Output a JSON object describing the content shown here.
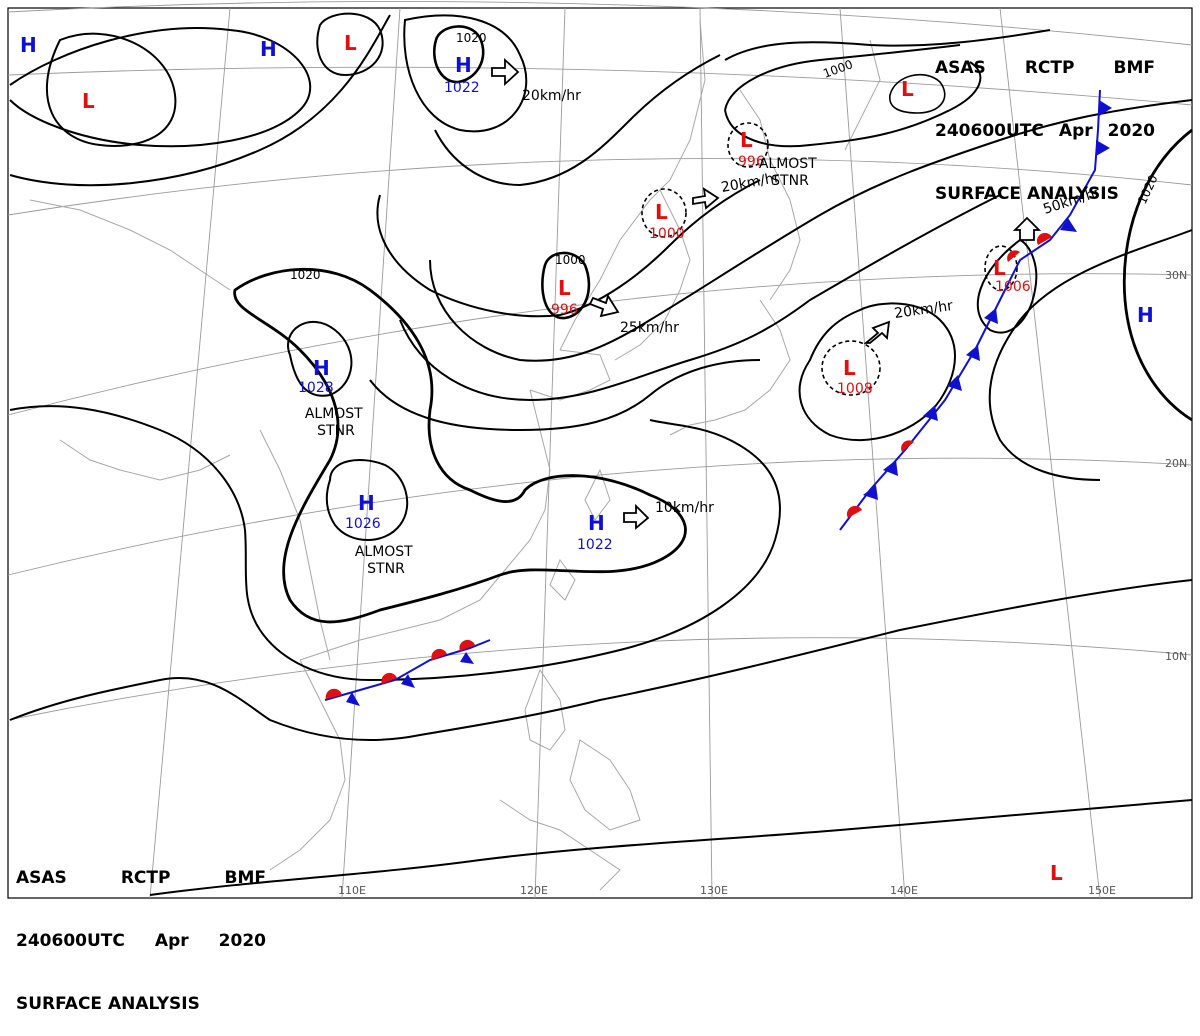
{
  "header": {
    "agency": "ASAS",
    "station": "RCTP",
    "office": "BMF",
    "datetime": "240600UTC",
    "month": "Apr",
    "year": "2020",
    "product": "SURFACE ANALYSIS"
  },
  "isobar_labels": [
    "1020",
    "1000",
    "1000",
    "1020",
    "1020"
  ],
  "centers": [
    {
      "id": "h-nw",
      "type": "H",
      "value": ""
    },
    {
      "id": "h-n1",
      "type": "H",
      "value": ""
    },
    {
      "id": "l-n1",
      "type": "L",
      "value": ""
    },
    {
      "id": "l-nw",
      "type": "L",
      "value": ""
    },
    {
      "id": "h-1022-north",
      "type": "H",
      "value": "1022"
    },
    {
      "id": "l-996-china",
      "type": "L",
      "value": "996"
    },
    {
      "id": "l-1000-korea",
      "type": "L",
      "value": "1000"
    },
    {
      "id": "l-996-manchuria",
      "type": "L",
      "value": "996"
    },
    {
      "id": "l-ne",
      "type": "L",
      "value": ""
    },
    {
      "id": "h-1028",
      "type": "H",
      "value": "1028"
    },
    {
      "id": "h-1026",
      "type": "H",
      "value": "1026"
    },
    {
      "id": "h-1022-south",
      "type": "H",
      "value": "1022"
    },
    {
      "id": "l-1008",
      "type": "L",
      "value": "1008"
    },
    {
      "id": "l-1006",
      "type": "L",
      "value": "1006"
    },
    {
      "id": "h-east",
      "type": "H",
      "value": ""
    },
    {
      "id": "l-se",
      "type": "L",
      "value": ""
    }
  ],
  "motions": [
    {
      "id": "m-1022n",
      "text": "20km/hr"
    },
    {
      "id": "m-996c",
      "text": "25km/hr"
    },
    {
      "id": "m-1000k",
      "text": "20km/hr"
    },
    {
      "id": "m-1008",
      "text": "20km/hr"
    },
    {
      "id": "m-1006",
      "text": "50km/hr"
    },
    {
      "id": "m-1022s",
      "text": "10km/hr"
    }
  ],
  "stationary_notes": [
    {
      "id": "stnr-manchuria",
      "line1": "ALMOST",
      "line2": "STNR"
    },
    {
      "id": "stnr-1028",
      "line1": "ALMOST",
      "line2": "STNR"
    },
    {
      "id": "stnr-1026",
      "line1": "ALMOST",
      "line2": "STNR"
    }
  ],
  "longitude_labels": [
    "110E",
    "120E",
    "130E",
    "140E",
    "150E"
  ],
  "latitude_labels": [
    "30N",
    "20N",
    "10N"
  ],
  "colors": {
    "high": "#1010d0",
    "low": "#e01010",
    "isobar": "#000000",
    "grid": "#9a9a9a",
    "coast": "#9a9a9a"
  }
}
